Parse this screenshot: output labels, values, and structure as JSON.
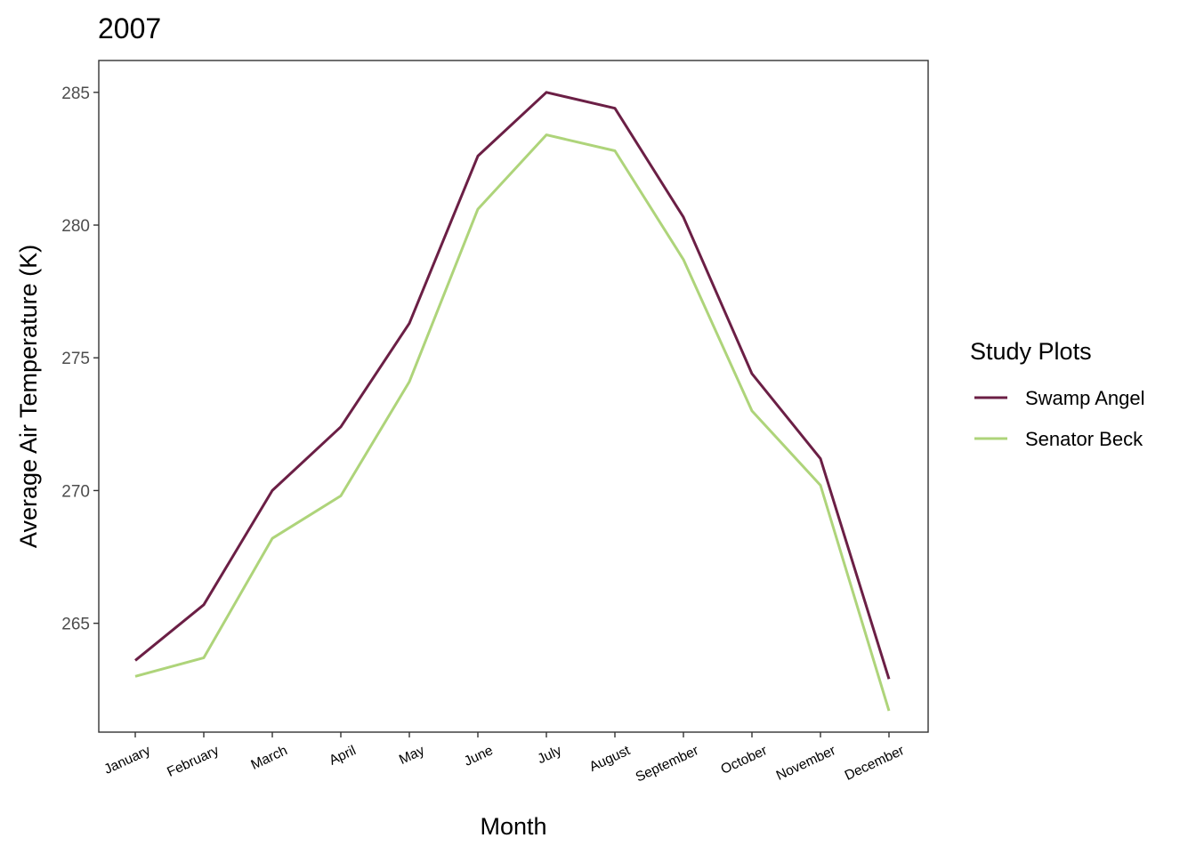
{
  "chart_data": {
    "type": "line",
    "title": "2007",
    "xlabel": "Month",
    "ylabel": "Average Air Temperature (K)",
    "categories": [
      "January",
      "February",
      "March",
      "April",
      "May",
      "June",
      "July",
      "August",
      "September",
      "October",
      "November",
      "December"
    ],
    "yticks": [
      265,
      270,
      275,
      280,
      285
    ],
    "ylim": [
      260.9,
      286.2
    ],
    "grid": false,
    "legend": {
      "title": "Study Plots",
      "position": "right"
    },
    "series": [
      {
        "name": "Swamp Angel",
        "color": "#6b1f45",
        "values": [
          263.6,
          265.7,
          270.0,
          272.4,
          276.3,
          282.6,
          285.0,
          284.4,
          280.3,
          274.4,
          271.2,
          262.9
        ]
      },
      {
        "name": "Senator Beck",
        "color": "#aed47a",
        "values": [
          263.0,
          263.7,
          268.2,
          269.8,
          274.1,
          280.6,
          283.4,
          282.8,
          278.7,
          273.0,
          270.2,
          261.7
        ]
      }
    ]
  }
}
